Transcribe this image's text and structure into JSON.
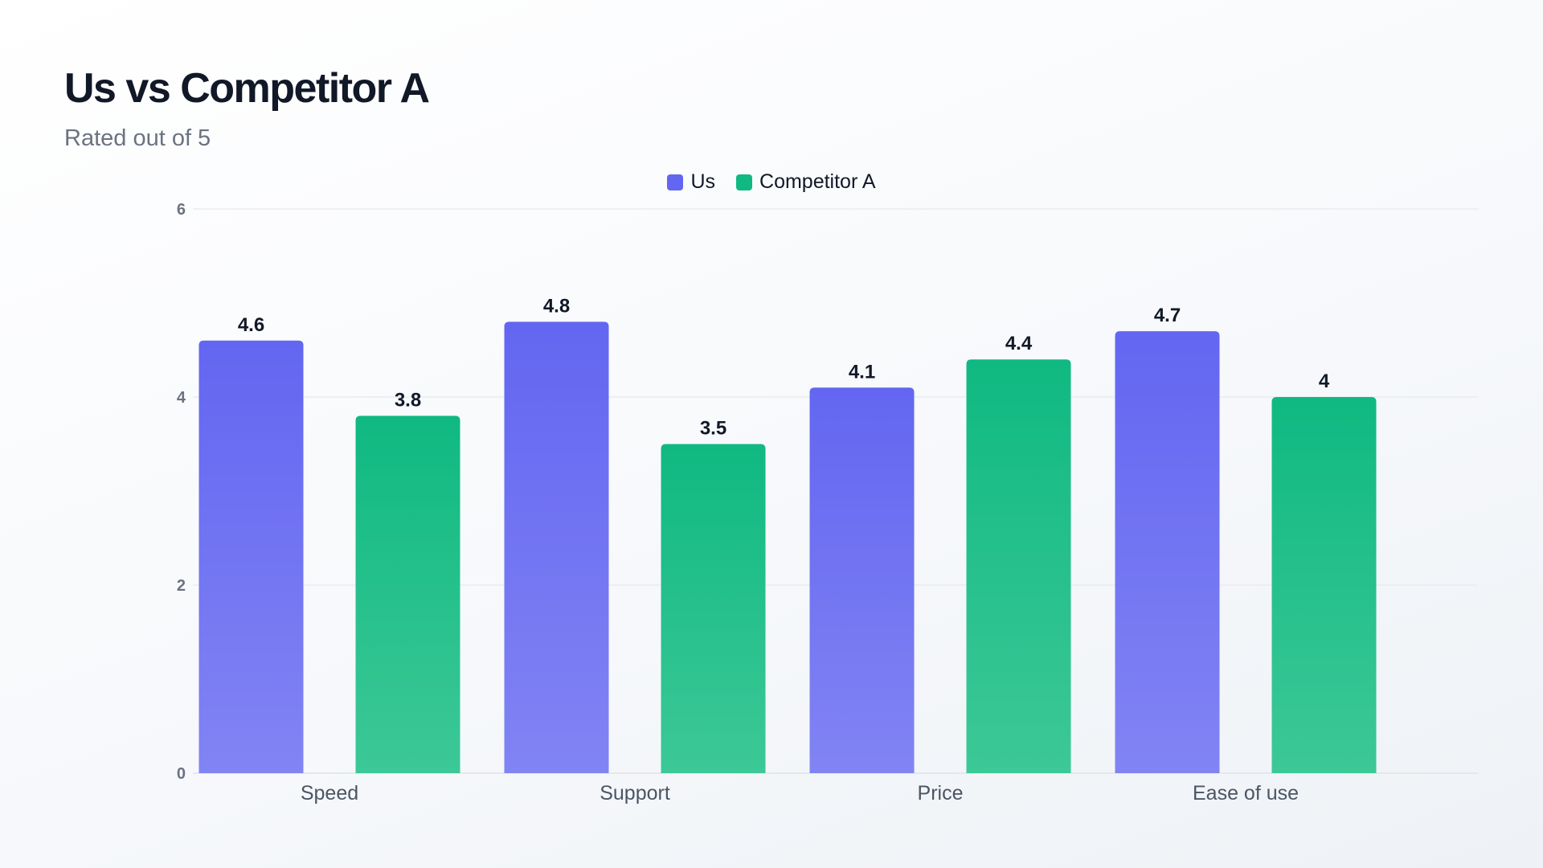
{
  "chart_data": {
    "type": "bar",
    "title": "Us vs Competitor A",
    "subtitle": "Rated out of 5",
    "categories": [
      "Speed",
      "Support",
      "Price",
      "Ease of use"
    ],
    "series": [
      {
        "name": "Us",
        "values": [
          4.6,
          4.8,
          4.1,
          4.7
        ],
        "color": "#6366f1"
      },
      {
        "name": "Competitor A",
        "values": [
          3.8,
          3.5,
          4.4,
          4
        ],
        "color": "#10b981"
      }
    ],
    "ylim": [
      0,
      6
    ],
    "yticks": [
      "0",
      "2",
      "4",
      "6"
    ],
    "grid": true,
    "legend_position": "top-center"
  }
}
